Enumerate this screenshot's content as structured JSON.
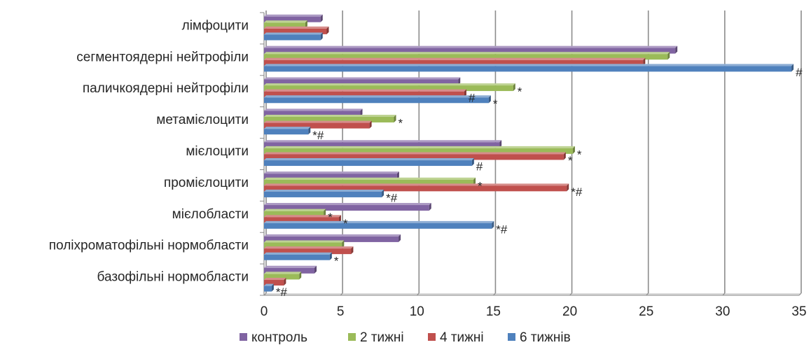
{
  "chart_data": {
    "type": "bar",
    "orientation": "horizontal",
    "categories": [
      "лімфоцити",
      "сегментоядерні нейтрофіли",
      "паличкоядерні нейтрофіли",
      "метамієлоцити",
      "мієлоцити",
      "промієлоцити",
      "мієлобласти",
      "поліхроматофільні нормобласти",
      "базофільні нормобласти"
    ],
    "series": [
      {
        "name": "контроль",
        "color": "#8064A2",
        "values": [
          3.7,
          26.9,
          12.7,
          6.3,
          15.4,
          8.7,
          10.8,
          8.8,
          3.3
        ],
        "annotations": [
          "",
          "",
          "",
          "",
          "",
          "",
          "",
          "",
          ""
        ]
      },
      {
        "name": "2 тижні",
        "color": "#9BBB59",
        "values": [
          2.7,
          26.4,
          16.3,
          8.5,
          20.2,
          13.7,
          3.9,
          5.1,
          2.3
        ],
        "annotations": [
          "",
          "",
          "*",
          "*",
          "*",
          "*",
          "*",
          "",
          ""
        ]
      },
      {
        "name": "4 тижні",
        "color": "#C0504D",
        "values": [
          4.1,
          24.8,
          13.1,
          6.9,
          19.6,
          19.8,
          4.9,
          5.7,
          1.3
        ],
        "annotations": [
          "",
          "",
          "#",
          "",
          "*",
          "*#",
          "*",
          "",
          ""
        ]
      },
      {
        "name": "6 тижнів",
        "color": "#4F81BD",
        "values": [
          3.7,
          34.5,
          14.7,
          2.9,
          13.6,
          7.7,
          14.9,
          4.3,
          0.5
        ],
        "annotations": [
          "",
          "#",
          "*",
          "*#",
          "#",
          "*#",
          "*#",
          "*",
          "*#"
        ]
      }
    ],
    "xlim": [
      0,
      35
    ],
    "xticks": [
      "0",
      "5",
      "10",
      "15",
      "20",
      "25",
      "30",
      "35"
    ],
    "grid": "vertical",
    "legend": "bottom"
  }
}
